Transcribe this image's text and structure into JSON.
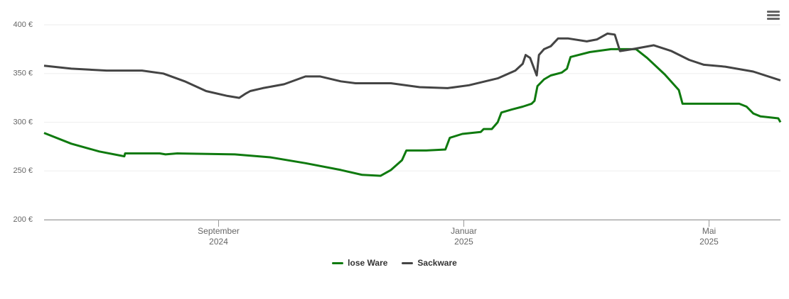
{
  "chart_data": {
    "type": "line",
    "xlim": [
      2024.43,
      2025.43
    ],
    "ylim": [
      200,
      400
    ],
    "grid": true,
    "legend": "bottom",
    "xticks": [
      {
        "value": 2024.667,
        "label": "September\n2024"
      },
      {
        "value": 2025.0,
        "label": "Januar\n2025"
      },
      {
        "value": 2025.333,
        "label": "Mai\n2025"
      }
    ],
    "yticks": [
      {
        "value": 200,
        "label": "200 €"
      },
      {
        "value": 250,
        "label": "250 €"
      },
      {
        "value": 300,
        "label": "300 €"
      },
      {
        "value": 350,
        "label": "350 €"
      },
      {
        "value": 400,
        "label": "400 €"
      }
    ],
    "series": [
      {
        "name": "lose Ware",
        "color": "#0f7a0f",
        "x": [
          2024.43,
          2024.467,
          2024.505,
          2024.539,
          2024.54,
          2024.587,
          2024.595,
          2024.611,
          2024.689,
          2024.737,
          2024.785,
          2024.833,
          2024.862,
          2024.887,
          2024.901,
          2024.916,
          2024.922,
          2024.949,
          2024.975,
          2024.981,
          2024.998,
          2025.023,
          2025.027,
          2025.038,
          2025.046,
          2025.051,
          2025.065,
          2025.08,
          2025.092,
          2025.096,
          2025.1,
          2025.109,
          2025.118,
          2025.133,
          2025.14,
          2025.145,
          2025.171,
          2025.2,
          2025.234,
          2025.249,
          2025.273,
          2025.292,
          2025.297,
          2025.374,
          2025.384,
          2025.393,
          2025.403,
          2025.427,
          2025.43
        ],
        "values": [
          289,
          278,
          270,
          265,
          268,
          268,
          267,
          268,
          267,
          264,
          258,
          251,
          246,
          245,
          251,
          261,
          271,
          271,
          272,
          284,
          288,
          290,
          293,
          293,
          300,
          310,
          313,
          316,
          319,
          322,
          337,
          344,
          348,
          351,
          355,
          367,
          372,
          375,
          375,
          366,
          349,
          333,
          319,
          319,
          316,
          309,
          306,
          304,
          300
        ]
      },
      {
        "name": "Sackware",
        "color": "#444444",
        "x": [
          2024.43,
          2024.467,
          2024.515,
          2024.563,
          2024.592,
          2024.621,
          2024.65,
          2024.679,
          2024.695,
          2024.703,
          2024.71,
          2024.727,
          2024.756,
          2024.785,
          2024.805,
          2024.833,
          2024.853,
          2024.901,
          2024.94,
          2024.978,
          2025.007,
          2025.046,
          2025.07,
          2025.08,
          2025.084,
          2025.09,
          2025.099,
          2025.102,
          2025.109,
          2025.118,
          2025.128,
          2025.142,
          2025.167,
          2025.181,
          2025.195,
          2025.205,
          2025.212,
          2025.229,
          2025.258,
          2025.282,
          2025.306,
          2025.326,
          2025.355,
          2025.393,
          2025.43
        ],
        "values": [
          358,
          355,
          353,
          353,
          350,
          342,
          332,
          327,
          325,
          329,
          332,
          335,
          339,
          347,
          347,
          342,
          340,
          340,
          336,
          335,
          338,
          345,
          353,
          360,
          369,
          366,
          348,
          369,
          375,
          378,
          386,
          386,
          383,
          385,
          391,
          390,
          373,
          375,
          379,
          373,
          364,
          359,
          357,
          352,
          343
        ]
      }
    ]
  }
}
